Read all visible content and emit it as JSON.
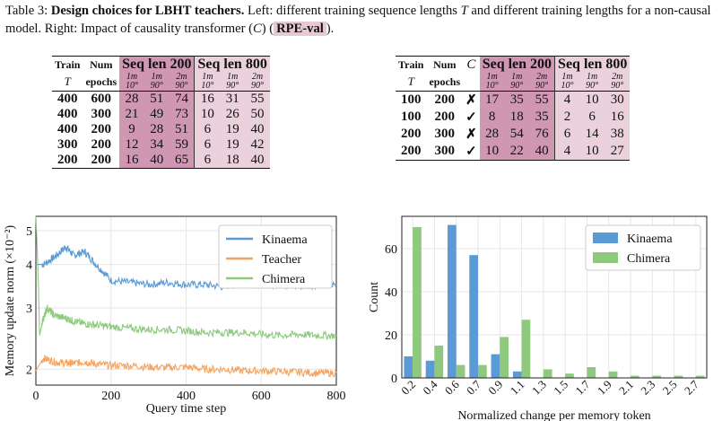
{
  "caption": {
    "prefix": "Table 3: ",
    "title": "Design choices for LBHT teachers.",
    "body_a": " Left: different training sequence lengths ",
    "T": "T",
    "body_b": " and different training lengths for a non-causal model. Right: Impact of causality transformer (",
    "C": "C",
    "body_c": ") (",
    "tag": "RPE-val",
    "body_d": ")."
  },
  "table_left": {
    "headers": {
      "train": "Train",
      "num": "Num",
      "T": "T",
      "epochs": "epochs",
      "seq200": "Seq len 200",
      "seq800": "Seq len 800"
    },
    "sub1": [
      "1m",
      "1m",
      "2m",
      "1m",
      "1m",
      "2m"
    ],
    "sub2": [
      "10°",
      "90°",
      "90°",
      "10°",
      "90°",
      "90°"
    ],
    "rows": [
      {
        "T": "400",
        "ep": "600",
        "v": [
          "28",
          "51",
          "74",
          "16",
          "31",
          "55"
        ]
      },
      {
        "T": "400",
        "ep": "300",
        "v": [
          "21",
          "49",
          "73",
          "10",
          "26",
          "50"
        ]
      },
      {
        "T": "400",
        "ep": "200",
        "v": [
          "9",
          "28",
          "51",
          "6",
          "19",
          "40"
        ]
      },
      {
        "T": "300",
        "ep": "200",
        "v": [
          "12",
          "34",
          "59",
          "6",
          "19",
          "42"
        ]
      },
      {
        "T": "200",
        "ep": "200",
        "v": [
          "16",
          "40",
          "65",
          "6",
          "18",
          "40"
        ]
      }
    ]
  },
  "table_right": {
    "headers": {
      "train": "Train",
      "num": "Num",
      "C": "C",
      "T": "T",
      "epochs": "epochs",
      "seq200": "Seq len 200",
      "seq800": "Seq len 800"
    },
    "sub1": [
      "1m",
      "1m",
      "2m",
      "1m",
      "1m",
      "2m"
    ],
    "sub2": [
      "10°",
      "90°",
      "90°",
      "10°",
      "90°",
      "90°"
    ],
    "rows": [
      {
        "T": "100",
        "ep": "200",
        "c": "✗",
        "v": [
          "17",
          "35",
          "55",
          "4",
          "10",
          "30"
        ]
      },
      {
        "T": "100",
        "ep": "200",
        "c": "✓",
        "v": [
          "8",
          "18",
          "35",
          "2",
          "6",
          "16"
        ]
      },
      {
        "T": "200",
        "ep": "300",
        "c": "✗",
        "v": [
          "28",
          "54",
          "76",
          "6",
          "14",
          "38"
        ]
      },
      {
        "T": "200",
        "ep": "300",
        "c": "✓",
        "v": [
          "10",
          "22",
          "40",
          "4",
          "10",
          "27"
        ]
      }
    ]
  },
  "chart_data": [
    {
      "type": "line",
      "xlabel": "Query time step",
      "ylabel": "Memory update norm (×10⁻²)",
      "xlim": [
        0,
        800
      ],
      "ylim": [
        1.8,
        5.5
      ],
      "yscale": "log",
      "xticks": [
        "0",
        "200",
        "400",
        "600",
        "800"
      ],
      "yticks": [
        "2",
        "3",
        "4",
        "5"
      ],
      "grid": true,
      "legend": "top-right",
      "series": [
        {
          "name": "Kinaema",
          "color": "#5b9bd5",
          "x": [
            0,
            20,
            50,
            80,
            100,
            130,
            160,
            200,
            250,
            300,
            350,
            400,
            450,
            500,
            550,
            600,
            650,
            700,
            750,
            800
          ],
          "y": [
            4.0,
            4.0,
            4.2,
            4.5,
            4.25,
            4.35,
            4.0,
            3.6,
            3.55,
            3.5,
            3.55,
            3.5,
            3.5,
            3.45,
            3.55,
            3.5,
            3.5,
            3.45,
            3.5,
            3.5
          ]
        },
        {
          "name": "Teacher",
          "color": "#f4a460",
          "x": [
            0,
            20,
            50,
            80,
            100,
            130,
            160,
            200,
            250,
            300,
            350,
            400,
            450,
            500,
            550,
            600,
            650,
            700,
            750,
            800
          ],
          "y": [
            1.98,
            2.15,
            2.1,
            2.08,
            2.08,
            2.1,
            2.07,
            2.05,
            2.05,
            2.03,
            2.02,
            2.03,
            2.0,
            2.0,
            1.98,
            1.98,
            1.97,
            1.96,
            1.95,
            1.95
          ]
        },
        {
          "name": "Chimera",
          "color": "#8fc97e",
          "x": [
            0,
            10,
            20,
            30,
            50,
            80,
            100,
            130,
            160,
            200,
            250,
            300,
            350,
            400,
            450,
            500,
            550,
            600,
            650,
            700,
            750,
            800
          ],
          "y": [
            5.5,
            2.5,
            2.8,
            3.0,
            2.85,
            2.8,
            2.75,
            2.7,
            2.68,
            2.65,
            2.62,
            2.6,
            2.6,
            2.58,
            2.55,
            2.55,
            2.55,
            2.52,
            2.5,
            2.52,
            2.5,
            2.5
          ]
        }
      ]
    },
    {
      "type": "bar",
      "xlabel": "Normalized change per memory token",
      "ylabel": "Count",
      "ylim": [
        0,
        75
      ],
      "categories": [
        "0.2",
        "0.4",
        "0.6",
        "0.7",
        "0.9",
        "1.1",
        "1.3",
        "1.5",
        "1.7",
        "1.9",
        "2.1",
        "2.3",
        "2.5",
        "2.7"
      ],
      "yticks": [
        "0",
        "20",
        "40",
        "60"
      ],
      "grid": true,
      "legend": "top-right",
      "series": [
        {
          "name": "Kinaema",
          "color": "#5b9bd5",
          "values": [
            10,
            8,
            71,
            57,
            11,
            3,
            0,
            0,
            0,
            0,
            0,
            0,
            0,
            0
          ]
        },
        {
          "name": "Chimera",
          "color": "#8fc97e",
          "values": [
            70,
            15,
            6,
            6,
            19,
            27,
            4,
            2,
            5,
            3,
            1,
            1,
            1,
            1
          ]
        }
      ]
    }
  ]
}
